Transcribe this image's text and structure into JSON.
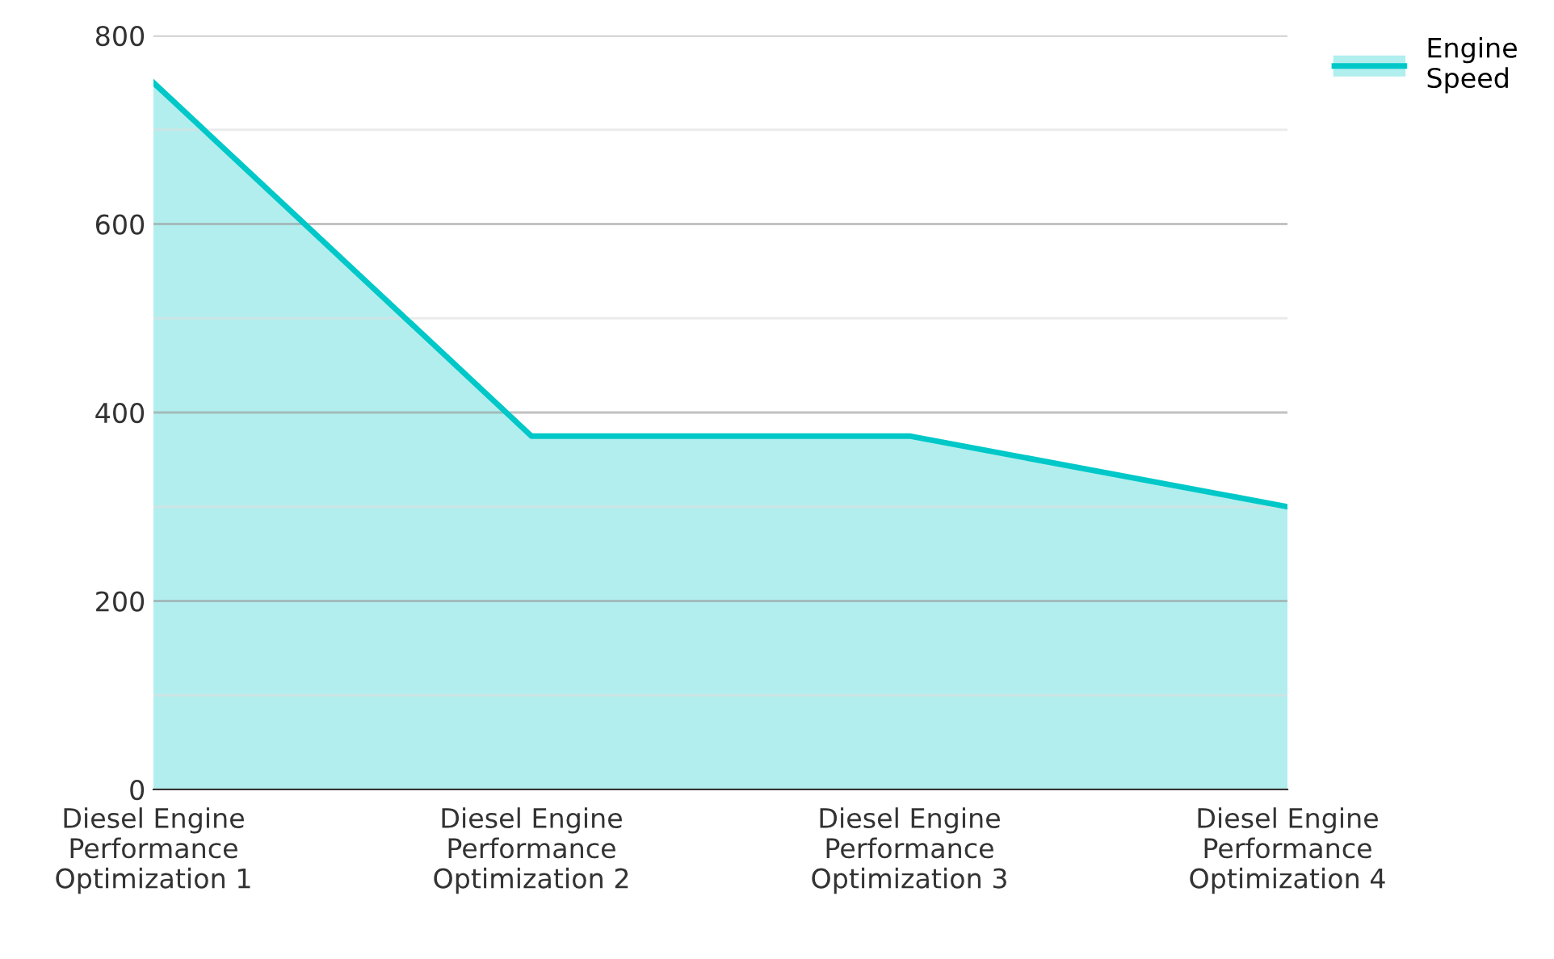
{
  "chart_data": {
    "type": "area",
    "categories": [
      "Diesel Engine\nPerformance\nOptimization 1",
      "Diesel Engine\nPerformance\nOptimization 2",
      "Diesel Engine\nPerformance\nOptimization 3",
      "Diesel Engine\nPerformance\nOptimization 4"
    ],
    "series": [
      {
        "name": "Engine\nSpeed",
        "color": "#00c8c8",
        "values": [
          750,
          375,
          375,
          300
        ]
      }
    ],
    "ylim": [
      0,
      800
    ],
    "yticks": [
      0,
      {
        "value": 100,
        "label": null
      },
      200,
      {
        "value": 300,
        "label": null
      },
      400,
      {
        "value": 500,
        "label": null
      },
      600,
      {
        "value": 700,
        "label": null
      },
      800
    ],
    "grid": "y",
    "legend": "top right",
    "line_style": "solid",
    "marker": "none"
  }
}
